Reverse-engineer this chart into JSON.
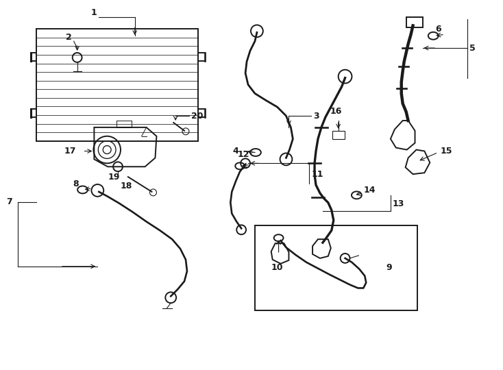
{
  "background_color": "#ffffff",
  "line_color": "#1a1a1a",
  "fig_width": 7.34,
  "fig_height": 5.4,
  "n_fins": 13,
  "font_size": 9,
  "line_width": 1.4
}
